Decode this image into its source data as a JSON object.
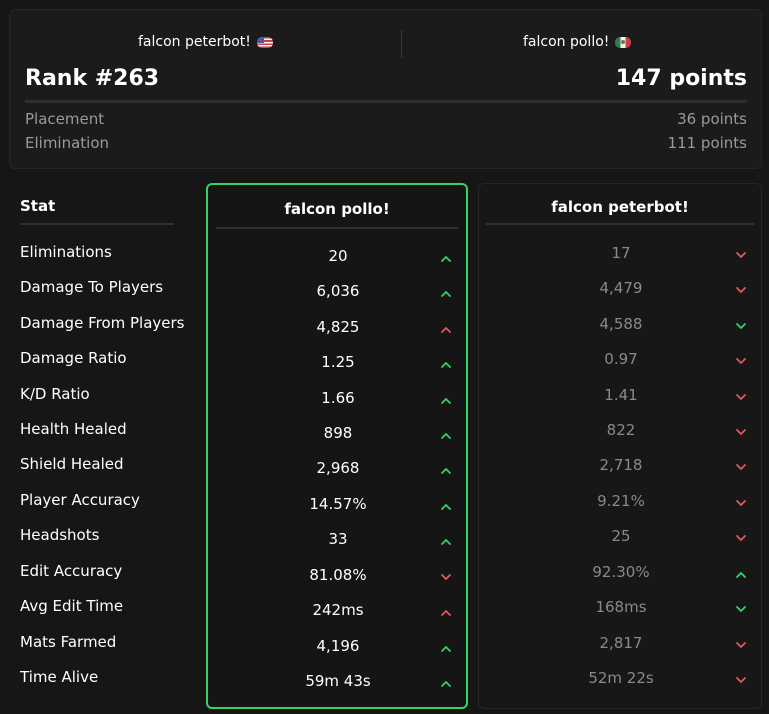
{
  "summary": {
    "player_left": "falcon peterbot!",
    "player_right": "falcon pollo!",
    "rank": "Rank #263",
    "total_points": "147 points",
    "rows": [
      {
        "label": "Placement",
        "value": "36 points"
      },
      {
        "label": "Elimination",
        "value": "111 points"
      }
    ]
  },
  "table": {
    "stat_header": "Stat",
    "player1_name": "falcon pollo!",
    "player2_name": "falcon peterbot!",
    "colors": {
      "up": "#35d26a",
      "down": "#e0595c",
      "highlight_border": "#35d26a"
    },
    "rows": [
      {
        "stat": "Eliminations",
        "p1": "20",
        "p1_icon": "chevron-up-green",
        "p2": "17",
        "p2_icon": "chevron-down-red"
      },
      {
        "stat": "Damage To Players",
        "p1": "6,036",
        "p1_icon": "chevron-up-green",
        "p2": "4,479",
        "p2_icon": "chevron-down-red"
      },
      {
        "stat": "Damage From Players",
        "p1": "4,825",
        "p1_icon": "chevron-up-red",
        "p2": "4,588",
        "p2_icon": "chevron-down-green"
      },
      {
        "stat": "Damage Ratio",
        "p1": "1.25",
        "p1_icon": "chevron-up-green",
        "p2": "0.97",
        "p2_icon": "chevron-down-red"
      },
      {
        "stat": "K/D Ratio",
        "p1": "1.66",
        "p1_icon": "chevron-up-green",
        "p2": "1.41",
        "p2_icon": "chevron-down-red"
      },
      {
        "stat": "Health Healed",
        "p1": "898",
        "p1_icon": "chevron-up-green",
        "p2": "822",
        "p2_icon": "chevron-down-red"
      },
      {
        "stat": "Shield Healed",
        "p1": "2,968",
        "p1_icon": "chevron-up-green",
        "p2": "2,718",
        "p2_icon": "chevron-down-red"
      },
      {
        "stat": "Player Accuracy",
        "p1": "14.57%",
        "p1_icon": "chevron-up-green",
        "p2": "9.21%",
        "p2_icon": "chevron-down-red"
      },
      {
        "stat": "Headshots",
        "p1": "33",
        "p1_icon": "chevron-up-green",
        "p2": "25",
        "p2_icon": "chevron-down-red"
      },
      {
        "stat": "Edit Accuracy",
        "p1": "81.08%",
        "p1_icon": "chevron-down-red",
        "p2": "92.30%",
        "p2_icon": "chevron-up-green"
      },
      {
        "stat": "Avg Edit Time",
        "p1": "242ms",
        "p1_icon": "chevron-up-red",
        "p2": "168ms",
        "p2_icon": "chevron-down-green"
      },
      {
        "stat": "Mats Farmed",
        "p1": "4,196",
        "p1_icon": "chevron-up-green",
        "p2": "2,817",
        "p2_icon": "chevron-down-red"
      },
      {
        "stat": "Time Alive",
        "p1": "59m 43s",
        "p1_icon": "chevron-up-green",
        "p2": "52m 22s",
        "p2_icon": "chevron-down-red"
      }
    ]
  }
}
